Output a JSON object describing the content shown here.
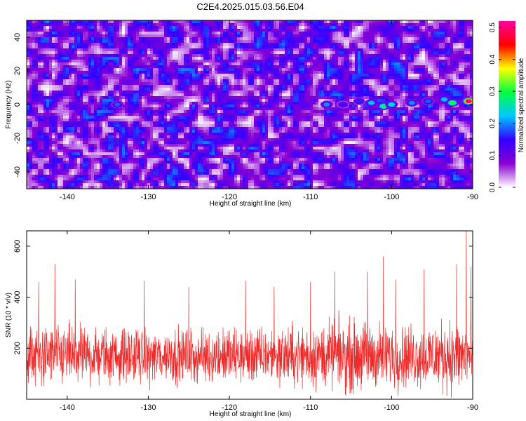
{
  "figure": {
    "title": "C2E4.2025.015.03.56.E04"
  },
  "chart_data": [
    {
      "type": "heatmap",
      "xlabel": "Height of straight line (km)",
      "ylabel": "Frequency (Hz)",
      "xlim": [
        -145,
        -90
      ],
      "ylim": [
        -50,
        50
      ],
      "x_ticks": [
        -140,
        -130,
        -120,
        -110,
        -100,
        -90
      ],
      "y_ticks": [
        -40,
        -20,
        0,
        20,
        40
      ],
      "colorbar": {
        "label": "Normalized spectral amplitude",
        "range": [
          0,
          0.52
        ],
        "ticks": [
          0.0,
          0.1,
          0.2,
          0.3,
          0.4,
          0.5
        ],
        "colormap": [
          "#ffffff",
          "#8a00d4",
          "#3300ff",
          "#00c8ff",
          "#00ff40",
          "#ffff00",
          "#ff0000",
          "#ff00a0"
        ]
      },
      "features": [
        {
          "x": -133.8,
          "y": 0,
          "value": 0.18
        },
        {
          "x": -108,
          "y": 0,
          "value": 0.2
        },
        {
          "x": -106,
          "y": 0,
          "value": 0.14
        },
        {
          "x": -104,
          "y": 2,
          "value": 0.16
        },
        {
          "x": -102.5,
          "y": 1,
          "value": 0.22
        },
        {
          "x": -101,
          "y": -1,
          "value": 0.28
        },
        {
          "x": -100,
          "y": 0,
          "value": 0.24
        },
        {
          "x": -97.5,
          "y": 1,
          "value": 0.2
        },
        {
          "x": -95.5,
          "y": 2,
          "value": 0.18
        },
        {
          "x": -93.5,
          "y": 3,
          "value": 0.22
        },
        {
          "x": -92.5,
          "y": 1,
          "value": 0.3
        },
        {
          "x": -90.5,
          "y": 2,
          "value": 0.5
        }
      ]
    },
    {
      "type": "line",
      "xlabel": "Height of straight line (km)",
      "ylabel": "SNR (10 * v/v)",
      "xlim": [
        -145,
        -90
      ],
      "ylim": [
        0,
        660
      ],
      "x_ticks": [
        -140,
        -130,
        -120,
        -110,
        -100,
        -90
      ],
      "y_ticks": [
        200,
        400,
        600
      ],
      "color": "#ee2b2b",
      "baseline": 170,
      "amplitude_profile": [
        {
          "x": -145,
          "spread": 110
        },
        {
          "x": -130,
          "spread": 95
        },
        {
          "x": -115,
          "spread": 100
        },
        {
          "x": -105,
          "spread": 125
        },
        {
          "x": -98,
          "spread": 110
        },
        {
          "x": -92,
          "spread": 130
        },
        {
          "x": -90,
          "spread": 120
        }
      ],
      "peaks": [
        {
          "x": -143.5,
          "y": 460
        },
        {
          "x": -141.5,
          "y": 530
        },
        {
          "x": -139,
          "y": 470
        },
        {
          "x": -130.5,
          "y": 465
        },
        {
          "x": -125,
          "y": 440
        },
        {
          "x": -118,
          "y": 465
        },
        {
          "x": -114.5,
          "y": 440
        },
        {
          "x": -110,
          "y": 460
        },
        {
          "x": -107,
          "y": 500
        },
        {
          "x": -103,
          "y": 500
        },
        {
          "x": -101,
          "y": 560
        },
        {
          "x": -99.5,
          "y": 470
        },
        {
          "x": -96,
          "y": 510
        },
        {
          "x": -92,
          "y": 530
        },
        {
          "x": -90.8,
          "y": 660
        },
        {
          "x": -90.2,
          "y": 520
        }
      ]
    }
  ]
}
